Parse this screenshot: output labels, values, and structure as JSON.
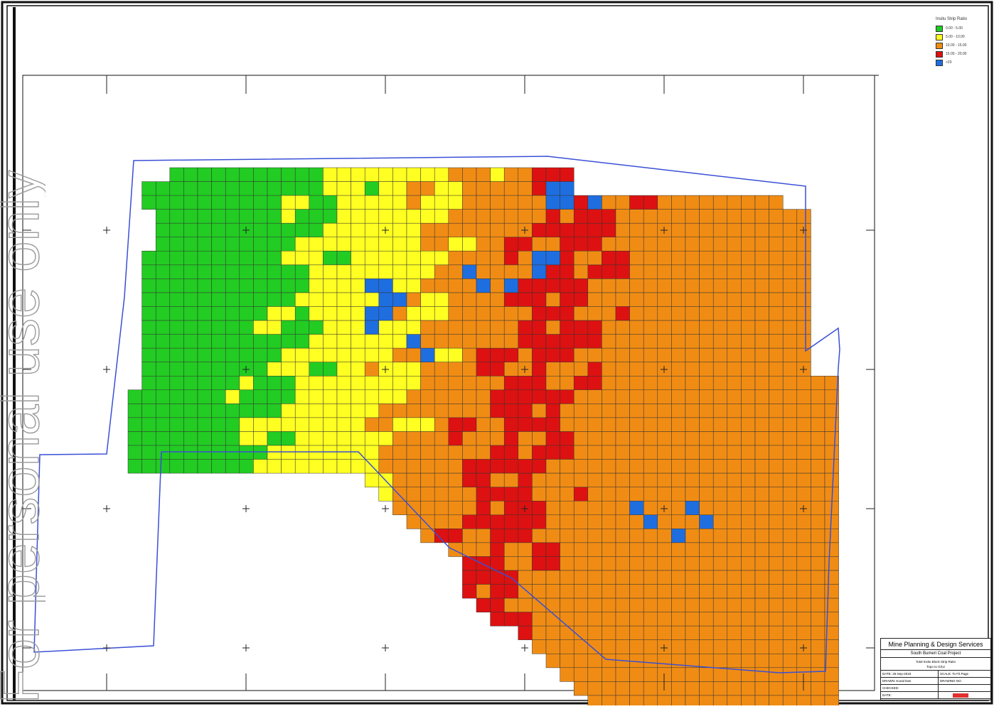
{
  "legend": {
    "title": "Insitu Strip Ratio",
    "items": [
      {
        "label": "0.00 - 5.00",
        "color": "#22cc22"
      },
      {
        "label": "5.00 - 10.00",
        "color": "#ffff22"
      },
      {
        "label": "10.00 - 15.00",
        "color": "#f08c14"
      },
      {
        "label": "15.00 - 20.00",
        "color": "#dd1111"
      },
      {
        "label": ">20",
        "color": "#1e6ee0"
      }
    ]
  },
  "title_block": {
    "company": "Mine Planning & Design Services",
    "project": "South Bumeri Coal Project",
    "drawing_title": "Total Insitu Block Strip Ratio",
    "drawing_subtitle": "Topo to GSU",
    "date_label": "DATE:",
    "date_value": "25-Sep-2019",
    "scale_label": "SCALE:",
    "scale_value": "To Fit Page",
    "drawn_label": "DRAWN:",
    "drawn_value": "Kunal Das",
    "drawing_no_label": "DRAWING NO.",
    "checked_label": "CHECKED:",
    "date2_label": "DATE:"
  },
  "watermark": {
    "text": "For personal use only"
  },
  "colors": {
    "boundary": "#3a4fd6",
    "grid_line": "#333333",
    "frame": "#111111"
  }
}
